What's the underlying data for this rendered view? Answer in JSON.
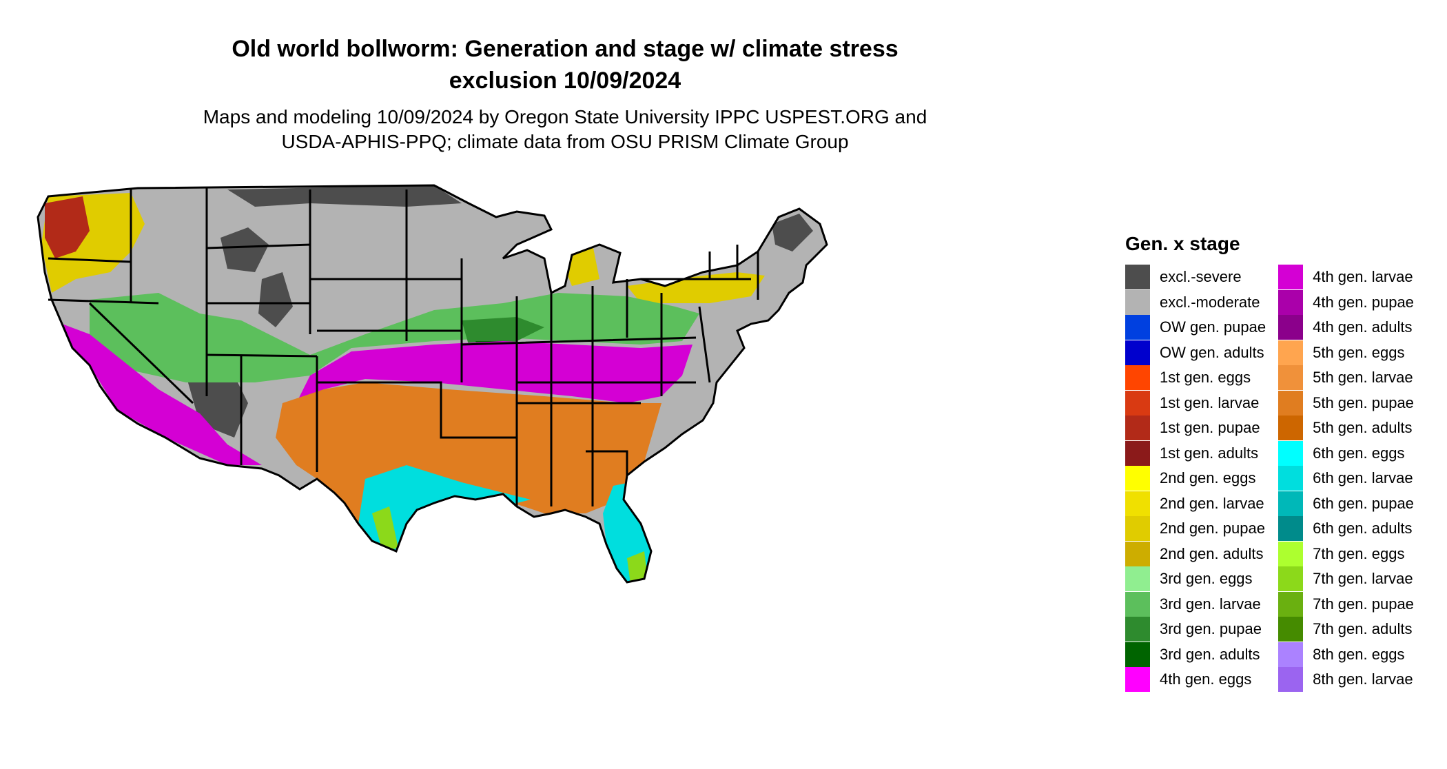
{
  "title_line1": "Old world bollworm: Generation and stage w/ climate stress",
  "title_line2": "exclusion 10/09/2024",
  "subtitle_line1": "Maps and modeling 10/09/2024 by Oregon State University IPPC USPEST.ORG and",
  "subtitle_line2": "USDA-APHIS-PPQ; climate data from OSU PRISM Climate Group",
  "legend": {
    "title": "Gen. x stage",
    "items": [
      {
        "label": "excl.-severe",
        "color": "#4d4d4d"
      },
      {
        "label": "excl.-moderate",
        "color": "#b3b3b3"
      },
      {
        "label": "OW gen. pupae",
        "color": "#0040e0"
      },
      {
        "label": "OW gen. adults",
        "color": "#0000cd"
      },
      {
        "label": "1st gen. eggs",
        "color": "#ff4500"
      },
      {
        "label": "1st gen. larvae",
        "color": "#d93a12"
      },
      {
        "label": "1st gen. pupae",
        "color": "#b22a18"
      },
      {
        "label": "1st gen. adults",
        "color": "#8b1a1a"
      },
      {
        "label": "2nd gen. eggs",
        "color": "#ffff00"
      },
      {
        "label": "2nd gen. larvae",
        "color": "#f0e000"
      },
      {
        "label": "2nd gen. pupae",
        "color": "#e0cc00"
      },
      {
        "label": "2nd gen. adults",
        "color": "#cdad00"
      },
      {
        "label": "3rd gen. eggs",
        "color": "#90ee90"
      },
      {
        "label": "3rd gen. larvae",
        "color": "#5cbf5c"
      },
      {
        "label": "3rd gen. pupae",
        "color": "#2e8b2e"
      },
      {
        "label": "3rd gen. adults",
        "color": "#006400"
      },
      {
        "label": "4th gen. eggs",
        "color": "#ff00ff"
      },
      {
        "label": "4th gen. larvae",
        "color": "#d400d4"
      },
      {
        "label": "4th gen. pupae",
        "color": "#aa00aa"
      },
      {
        "label": "4th gen. adults",
        "color": "#8b008b"
      },
      {
        "label": "5th gen. eggs",
        "color": "#ffa54f"
      },
      {
        "label": "5th gen. larvae",
        "color": "#f0913a"
      },
      {
        "label": "5th gen. pupae",
        "color": "#e07d20"
      },
      {
        "label": "5th gen. adults",
        "color": "#cd6600"
      },
      {
        "label": "6th gen. eggs",
        "color": "#00ffff"
      },
      {
        "label": "6th gen. larvae",
        "color": "#00dede"
      },
      {
        "label": "6th gen. pupae",
        "color": "#00b8b8"
      },
      {
        "label": "6th gen. adults",
        "color": "#008b8b"
      },
      {
        "label": "7th gen. eggs",
        "color": "#adff2f"
      },
      {
        "label": "7th gen. larvae",
        "color": "#8cd91a"
      },
      {
        "label": "7th gen. pupae",
        "color": "#6ab010"
      },
      {
        "label": "7th gen. adults",
        "color": "#458b00"
      },
      {
        "label": "8th gen. eggs",
        "color": "#ab82ff"
      },
      {
        "label": "8th gen. larvae",
        "color": "#9b64f0"
      }
    ]
  }
}
